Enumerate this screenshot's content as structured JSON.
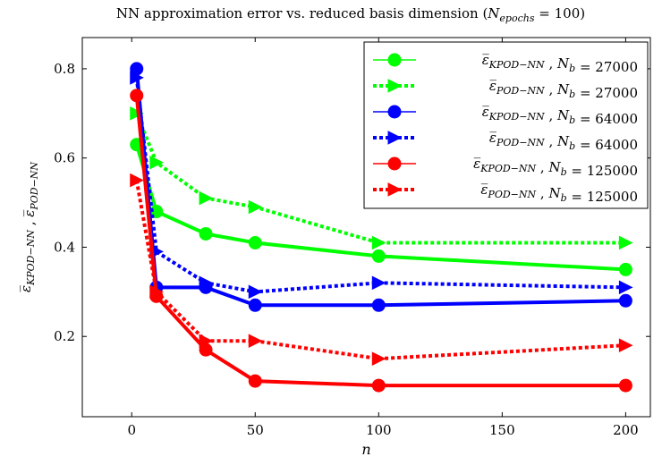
{
  "chart_data": {
    "type": "line",
    "title": "NN approximation error vs. reduced basis dimension (N_epochs = 100)",
    "xlabel": "n",
    "ylabel": "ε̅_KPOD−NN , ε̅_POD−NN",
    "xlim": [
      -20,
      210
    ],
    "ylim": [
      0.02,
      0.87
    ],
    "xticks": [
      0,
      50,
      100,
      150,
      200
    ],
    "yticks": [
      0.2,
      0.4,
      0.6,
      0.8
    ],
    "grid": false,
    "legend_position": "top-right",
    "x": [
      2,
      10,
      30,
      50,
      100,
      200
    ],
    "series": [
      {
        "name": "ε̅_KPOD−NN , N_b = 27000",
        "color": "#00ff00",
        "style": "solid",
        "marker": "circle",
        "values": [
          0.63,
          0.48,
          0.43,
          0.41,
          0.38,
          0.35
        ]
      },
      {
        "name": "ε̅_POD−NN , N_b = 27000",
        "color": "#00ff00",
        "style": "dotted",
        "marker": "triangle-right",
        "values": [
          0.7,
          0.59,
          0.51,
          0.49,
          0.41,
          0.41
        ]
      },
      {
        "name": "ε̅_KPOD−NN , N_b = 64000",
        "color": "#0000ff",
        "style": "solid",
        "marker": "circle",
        "values": [
          0.8,
          0.31,
          0.31,
          0.27,
          0.27,
          0.28
        ]
      },
      {
        "name": "ε̅_POD−NN , N_b = 64000",
        "color": "#0000ff",
        "style": "dotted",
        "marker": "triangle-right",
        "values": [
          0.78,
          0.39,
          0.32,
          0.3,
          0.32,
          0.31
        ]
      },
      {
        "name": "ε̅_KPOD−NN , N_b = 125000",
        "color": "#ff0000",
        "style": "solid",
        "marker": "circle",
        "values": [
          0.74,
          0.29,
          0.17,
          0.1,
          0.09,
          0.09
        ]
      },
      {
        "name": "ε̅_POD−NN , N_b = 125000",
        "color": "#ff0000",
        "style": "dotted",
        "marker": "triangle-right",
        "values": [
          0.55,
          0.3,
          0.19,
          0.19,
          0.15,
          0.18
        ]
      }
    ]
  }
}
